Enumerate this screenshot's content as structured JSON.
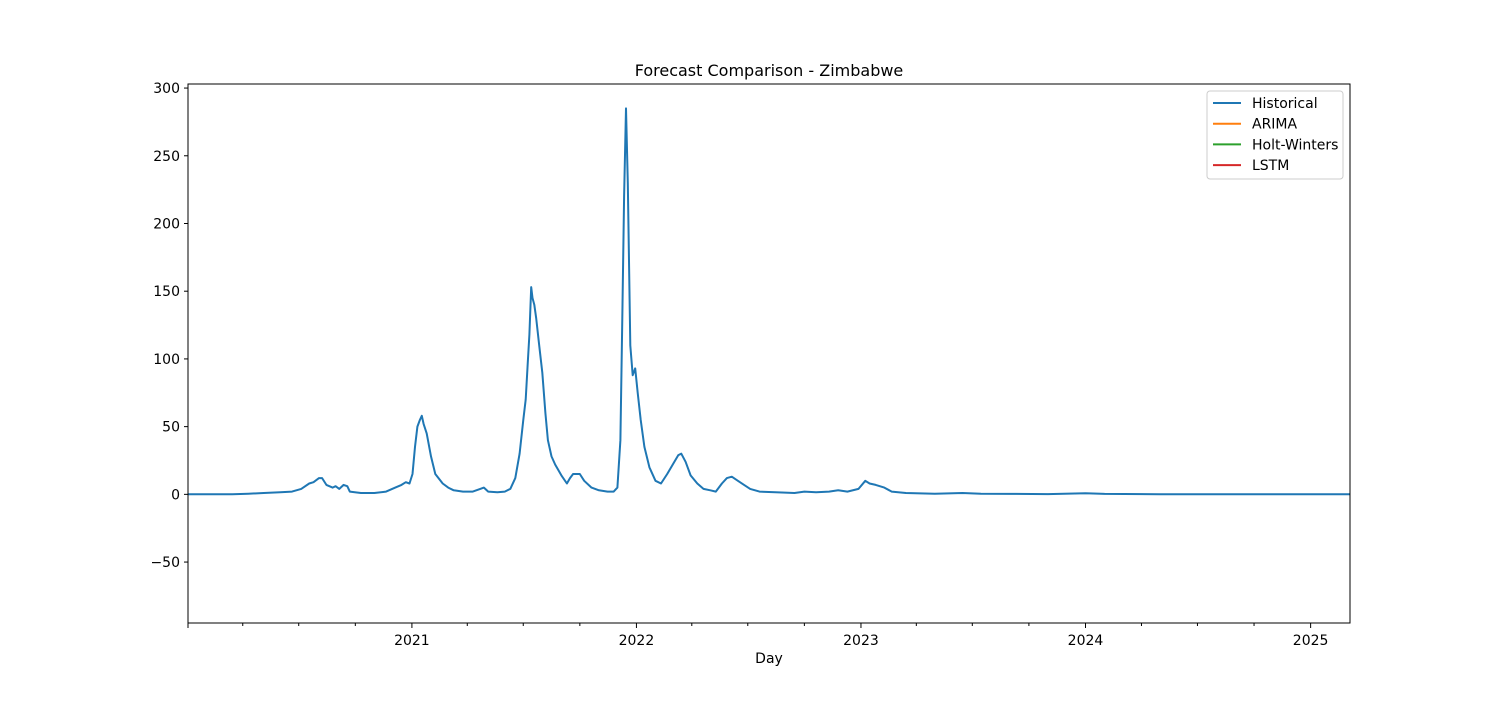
{
  "chart_data": {
    "type": "line",
    "title": "Forecast Comparison - Zimbabwe",
    "xlabel": "Day",
    "ylabel": "",
    "x_range": [
      "2020-01-03",
      "2025-03-06"
    ],
    "ylim": [
      -95,
      303
    ],
    "y_ticks": [
      -50,
      0,
      50,
      100,
      150,
      200,
      250,
      300
    ],
    "y_tick_labels": [
      "−50",
      "0",
      "50",
      "100",
      "150",
      "200",
      "250",
      "300"
    ],
    "x_ticks": [
      "2021-01-01",
      "2022-01-01",
      "2023-01-01",
      "2024-01-01",
      "2025-01-01"
    ],
    "x_tick_labels": [
      "2021",
      "2022",
      "2023",
      "2024",
      "2025"
    ],
    "minor_x_ticks": [
      "2020-04-01",
      "2020-07-01",
      "2020-10-01",
      "2021-04-01",
      "2021-07-01",
      "2021-10-01",
      "2022-04-01",
      "2022-07-01",
      "2022-10-01",
      "2023-04-01",
      "2023-07-01",
      "2023-10-01",
      "2024-04-01",
      "2024-07-01",
      "2024-10-01"
    ],
    "grid": false,
    "legend_position": "top-right",
    "series": [
      {
        "name": "Historical",
        "color": "#1f77b4",
        "points": [
          [
            "2020-01-03",
            0
          ],
          [
            "2020-03-15",
            0
          ],
          [
            "2020-04-10",
            0.5
          ],
          [
            "2020-05-05",
            1
          ],
          [
            "2020-06-01",
            1.5
          ],
          [
            "2020-06-20",
            2
          ],
          [
            "2020-07-05",
            4
          ],
          [
            "2020-07-18",
            8
          ],
          [
            "2020-07-25",
            9
          ],
          [
            "2020-08-03",
            12
          ],
          [
            "2020-08-08",
            12
          ],
          [
            "2020-08-15",
            7
          ],
          [
            "2020-08-25",
            5
          ],
          [
            "2020-08-30",
            6
          ],
          [
            "2020-09-05",
            4
          ],
          [
            "2020-09-12",
            7
          ],
          [
            "2020-09-18",
            6
          ],
          [
            "2020-09-22",
            2
          ],
          [
            "2020-10-10",
            1
          ],
          [
            "2020-11-01",
            1
          ],
          [
            "2020-11-20",
            2
          ],
          [
            "2020-12-05",
            5
          ],
          [
            "2020-12-15",
            7
          ],
          [
            "2020-12-22",
            9
          ],
          [
            "2020-12-28",
            8
          ],
          [
            "2021-01-02",
            15
          ],
          [
            "2021-01-06",
            35
          ],
          [
            "2021-01-10",
            50
          ],
          [
            "2021-01-14",
            55
          ],
          [
            "2021-01-17",
            58
          ],
          [
            "2021-01-20",
            52
          ],
          [
            "2021-01-25",
            45
          ],
          [
            "2021-02-01",
            28
          ],
          [
            "2021-02-08",
            15
          ],
          [
            "2021-02-20",
            8
          ],
          [
            "2021-03-01",
            5
          ],
          [
            "2021-03-10",
            3
          ],
          [
            "2021-03-25",
            2
          ],
          [
            "2021-04-10",
            2
          ],
          [
            "2021-04-22",
            4
          ],
          [
            "2021-04-28",
            5
          ],
          [
            "2021-05-05",
            2
          ],
          [
            "2021-05-20",
            1.5
          ],
          [
            "2021-06-01",
            2
          ],
          [
            "2021-06-10",
            4
          ],
          [
            "2021-06-18",
            12
          ],
          [
            "2021-06-25",
            30
          ],
          [
            "2021-07-01",
            55
          ],
          [
            "2021-07-05",
            70
          ],
          [
            "2021-07-08",
            95
          ],
          [
            "2021-07-11",
            118
          ],
          [
            "2021-07-14",
            153
          ],
          [
            "2021-07-16",
            145
          ],
          [
            "2021-07-19",
            140
          ],
          [
            "2021-07-22",
            130
          ],
          [
            "2021-07-27",
            110
          ],
          [
            "2021-08-01",
            90
          ],
          [
            "2021-08-06",
            60
          ],
          [
            "2021-08-10",
            40
          ],
          [
            "2021-08-16",
            28
          ],
          [
            "2021-08-22",
            22
          ],
          [
            "2021-09-01",
            14
          ],
          [
            "2021-09-10",
            8
          ],
          [
            "2021-09-15",
            12
          ],
          [
            "2021-09-20",
            15
          ],
          [
            "2021-10-01",
            15
          ],
          [
            "2021-10-08",
            10
          ],
          [
            "2021-10-20",
            5
          ],
          [
            "2021-11-01",
            3
          ],
          [
            "2021-11-15",
            2
          ],
          [
            "2021-11-25",
            2
          ],
          [
            "2021-12-01",
            5
          ],
          [
            "2021-12-06",
            40
          ],
          [
            "2021-12-09",
            130
          ],
          [
            "2021-12-12",
            220
          ],
          [
            "2021-12-15",
            285
          ],
          [
            "2021-12-18",
            230
          ],
          [
            "2021-12-22",
            110
          ],
          [
            "2021-12-26",
            88
          ],
          [
            "2021-12-30",
            93
          ],
          [
            "2022-01-03",
            75
          ],
          [
            "2022-01-08",
            55
          ],
          [
            "2022-01-14",
            35
          ],
          [
            "2022-01-22",
            20
          ],
          [
            "2022-02-01",
            10
          ],
          [
            "2022-02-10",
            8
          ],
          [
            "2022-02-20",
            15
          ],
          [
            "2022-03-01",
            22
          ],
          [
            "2022-03-10",
            29
          ],
          [
            "2022-03-15",
            30
          ],
          [
            "2022-03-22",
            24
          ],
          [
            "2022-03-30",
            14
          ],
          [
            "2022-04-10",
            8
          ],
          [
            "2022-04-20",
            4
          ],
          [
            "2022-05-01",
            3
          ],
          [
            "2022-05-10",
            2
          ],
          [
            "2022-05-20",
            8
          ],
          [
            "2022-05-28",
            12
          ],
          [
            "2022-06-05",
            13
          ],
          [
            "2022-06-15",
            10
          ],
          [
            "2022-06-25",
            7
          ],
          [
            "2022-07-05",
            4
          ],
          [
            "2022-07-20",
            2
          ],
          [
            "2022-08-15",
            1.5
          ],
          [
            "2022-09-15",
            1
          ],
          [
            "2022-10-01",
            2
          ],
          [
            "2022-10-20",
            1.5
          ],
          [
            "2022-11-10",
            2
          ],
          [
            "2022-11-25",
            3
          ],
          [
            "2022-12-10",
            2
          ],
          [
            "2022-12-28",
            4
          ],
          [
            "2023-01-08",
            10
          ],
          [
            "2023-01-15",
            8
          ],
          [
            "2023-01-25",
            7
          ],
          [
            "2023-02-08",
            5
          ],
          [
            "2023-02-20",
            2
          ],
          [
            "2023-03-15",
            1
          ],
          [
            "2023-05-01",
            0.5
          ],
          [
            "2023-06-15",
            1
          ],
          [
            "2023-07-15",
            0.5
          ],
          [
            "2023-09-01",
            0.3
          ],
          [
            "2023-11-01",
            0.2
          ],
          [
            "2024-01-01",
            0.8
          ],
          [
            "2024-02-01",
            0.3
          ],
          [
            "2024-05-01",
            0.1
          ],
          [
            "2024-08-01",
            0
          ],
          [
            "2025-03-06",
            0
          ]
        ]
      },
      {
        "name": "ARIMA",
        "color": "#ff7f0e",
        "points": []
      },
      {
        "name": "Holt-Winters",
        "color": "#2ca02c",
        "points": []
      },
      {
        "name": "LSTM",
        "color": "#d62728",
        "points": []
      }
    ]
  }
}
